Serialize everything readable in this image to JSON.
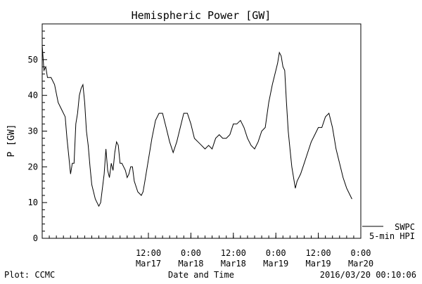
{
  "chart_data": {
    "type": "line",
    "title": "Hemispheric Power [GW]",
    "ylabel": "P [GW]",
    "xlabel": "Date and Time",
    "ylim": [
      0,
      60
    ],
    "yticks": [
      0,
      10,
      20,
      30,
      40,
      50
    ],
    "xlim": [
      "2016-03-16T06:00",
      "2016-03-20T00:00"
    ],
    "xticks": [
      {
        "t": "2016-03-17T12:00",
        "time": "12:00",
        "date": "Mar17"
      },
      {
        "t": "2016-03-18T00:00",
        "time": "0:00",
        "date": "Mar18"
      },
      {
        "t": "2016-03-18T12:00",
        "time": "12:00",
        "date": "Mar18"
      },
      {
        "t": "2016-03-19T00:00",
        "time": "0:00",
        "date": "Mar19"
      },
      {
        "t": "2016-03-19T12:00",
        "time": "12:00",
        "date": "Mar19"
      },
      {
        "t": "2016-03-20T00:00",
        "time": "0:00",
        "date": "Mar20"
      }
    ],
    "grid": false,
    "series": [
      {
        "name": "5-min HPI",
        "color": "#000000",
        "points": [
          [
            "2016-03-16T06:00",
            54
          ],
          [
            "2016-03-16T06:30",
            47
          ],
          [
            "2016-03-16T07:00",
            48
          ],
          [
            "2016-03-16T07:30",
            45
          ],
          [
            "2016-03-16T08:30",
            45
          ],
          [
            "2016-03-16T09:30",
            43
          ],
          [
            "2016-03-16T10:30",
            38
          ],
          [
            "2016-03-16T11:30",
            36
          ],
          [
            "2016-03-16T12:30",
            34
          ],
          [
            "2016-03-16T13:00",
            28
          ],
          [
            "2016-03-16T13:30",
            23
          ],
          [
            "2016-03-16T14:00",
            18
          ],
          [
            "2016-03-16T14:30",
            21
          ],
          [
            "2016-03-16T15:00",
            21
          ],
          [
            "2016-03-16T15:30",
            32
          ],
          [
            "2016-03-16T16:00",
            35
          ],
          [
            "2016-03-16T16:30",
            40
          ],
          [
            "2016-03-16T17:00",
            42
          ],
          [
            "2016-03-16T17:30",
            43
          ],
          [
            "2016-03-16T18:00",
            38
          ],
          [
            "2016-03-16T18:30",
            30
          ],
          [
            "2016-03-16T19:00",
            26
          ],
          [
            "2016-03-16T19:30",
            20
          ],
          [
            "2016-03-16T20:00",
            15
          ],
          [
            "2016-03-16T21:00",
            11
          ],
          [
            "2016-03-16T22:00",
            9
          ],
          [
            "2016-03-16T22:30",
            10
          ],
          [
            "2016-03-16T23:00",
            14
          ],
          [
            "2016-03-16T23:30",
            18
          ],
          [
            "2016-03-17T00:00",
            25
          ],
          [
            "2016-03-17T00:30",
            19
          ],
          [
            "2016-03-17T01:00",
            17
          ],
          [
            "2016-03-17T01:30",
            21
          ],
          [
            "2016-03-17T02:00",
            19
          ],
          [
            "2016-03-17T02:30",
            24
          ],
          [
            "2016-03-17T03:00",
            27
          ],
          [
            "2016-03-17T03:30",
            26
          ],
          [
            "2016-03-17T04:00",
            21
          ],
          [
            "2016-03-17T04:30",
            21
          ],
          [
            "2016-03-17T05:00",
            20
          ],
          [
            "2016-03-17T05:30",
            19
          ],
          [
            "2016-03-17T06:00",
            17
          ],
          [
            "2016-03-17T06:30",
            18
          ],
          [
            "2016-03-17T07:00",
            20
          ],
          [
            "2016-03-17T07:30",
            20
          ],
          [
            "2016-03-17T08:00",
            16
          ],
          [
            "2016-03-17T09:00",
            13
          ],
          [
            "2016-03-17T10:00",
            12
          ],
          [
            "2016-03-17T10:30",
            13
          ],
          [
            "2016-03-17T11:00",
            16
          ],
          [
            "2016-03-17T12:00",
            22
          ],
          [
            "2016-03-17T13:00",
            28
          ],
          [
            "2016-03-17T14:00",
            33
          ],
          [
            "2016-03-17T15:00",
            35
          ],
          [
            "2016-03-17T16:00",
            35
          ],
          [
            "2016-03-17T17:00",
            31
          ],
          [
            "2016-03-17T18:00",
            27
          ],
          [
            "2016-03-17T19:00",
            24
          ],
          [
            "2016-03-17T20:00",
            27
          ],
          [
            "2016-03-17T21:00",
            31
          ],
          [
            "2016-03-17T22:00",
            35
          ],
          [
            "2016-03-17T23:00",
            35
          ],
          [
            "2016-03-18T00:00",
            32
          ],
          [
            "2016-03-18T01:00",
            28
          ],
          [
            "2016-03-18T02:00",
            27
          ],
          [
            "2016-03-18T03:00",
            26
          ],
          [
            "2016-03-18T04:00",
            25
          ],
          [
            "2016-03-18T05:00",
            26
          ],
          [
            "2016-03-18T06:00",
            25
          ],
          [
            "2016-03-18T07:00",
            28
          ],
          [
            "2016-03-18T08:00",
            29
          ],
          [
            "2016-03-18T09:00",
            28
          ],
          [
            "2016-03-18T10:00",
            28
          ],
          [
            "2016-03-18T11:00",
            29
          ],
          [
            "2016-03-18T12:00",
            32
          ],
          [
            "2016-03-18T13:00",
            32
          ],
          [
            "2016-03-18T14:00",
            33
          ],
          [
            "2016-03-18T15:00",
            31
          ],
          [
            "2016-03-18T16:00",
            28
          ],
          [
            "2016-03-18T17:00",
            26
          ],
          [
            "2016-03-18T18:00",
            25
          ],
          [
            "2016-03-18T19:00",
            27
          ],
          [
            "2016-03-18T20:00",
            30
          ],
          [
            "2016-03-18T21:00",
            31
          ],
          [
            "2016-03-18T22:00",
            38
          ],
          [
            "2016-03-18T23:00",
            43
          ],
          [
            "2016-03-19T00:00",
            47
          ],
          [
            "2016-03-19T00:30",
            49
          ],
          [
            "2016-03-19T01:00",
            52
          ],
          [
            "2016-03-19T01:30",
            51
          ],
          [
            "2016-03-19T02:00",
            48
          ],
          [
            "2016-03-19T02:30",
            47
          ],
          [
            "2016-03-19T03:00",
            38
          ],
          [
            "2016-03-19T03:30",
            30
          ],
          [
            "2016-03-19T04:00",
            25
          ],
          [
            "2016-03-19T04:30",
            20
          ],
          [
            "2016-03-19T05:00",
            17
          ],
          [
            "2016-03-19T05:30",
            14
          ],
          [
            "2016-03-19T06:00",
            16
          ],
          [
            "2016-03-19T07:00",
            18
          ],
          [
            "2016-03-19T08:00",
            21
          ],
          [
            "2016-03-19T09:00",
            24
          ],
          [
            "2016-03-19T10:00",
            27
          ],
          [
            "2016-03-19T11:00",
            29
          ],
          [
            "2016-03-19T12:00",
            31
          ],
          [
            "2016-03-19T13:00",
            31
          ],
          [
            "2016-03-19T14:00",
            34
          ],
          [
            "2016-03-19T15:00",
            35
          ],
          [
            "2016-03-19T16:00",
            31
          ],
          [
            "2016-03-19T17:00",
            25
          ],
          [
            "2016-03-19T18:00",
            21
          ],
          [
            "2016-03-19T19:00",
            17
          ],
          [
            "2016-03-19T20:00",
            14
          ],
          [
            "2016-03-19T21:00",
            12
          ],
          [
            "2016-03-19T21:30",
            11
          ]
        ]
      }
    ],
    "legend": {
      "placement": "bottom-right",
      "entries": [
        "SWPC",
        "5-min HPI"
      ]
    }
  },
  "footer": {
    "left": "Plot: CCMC",
    "right": "2016/03/20 00:10:06"
  }
}
